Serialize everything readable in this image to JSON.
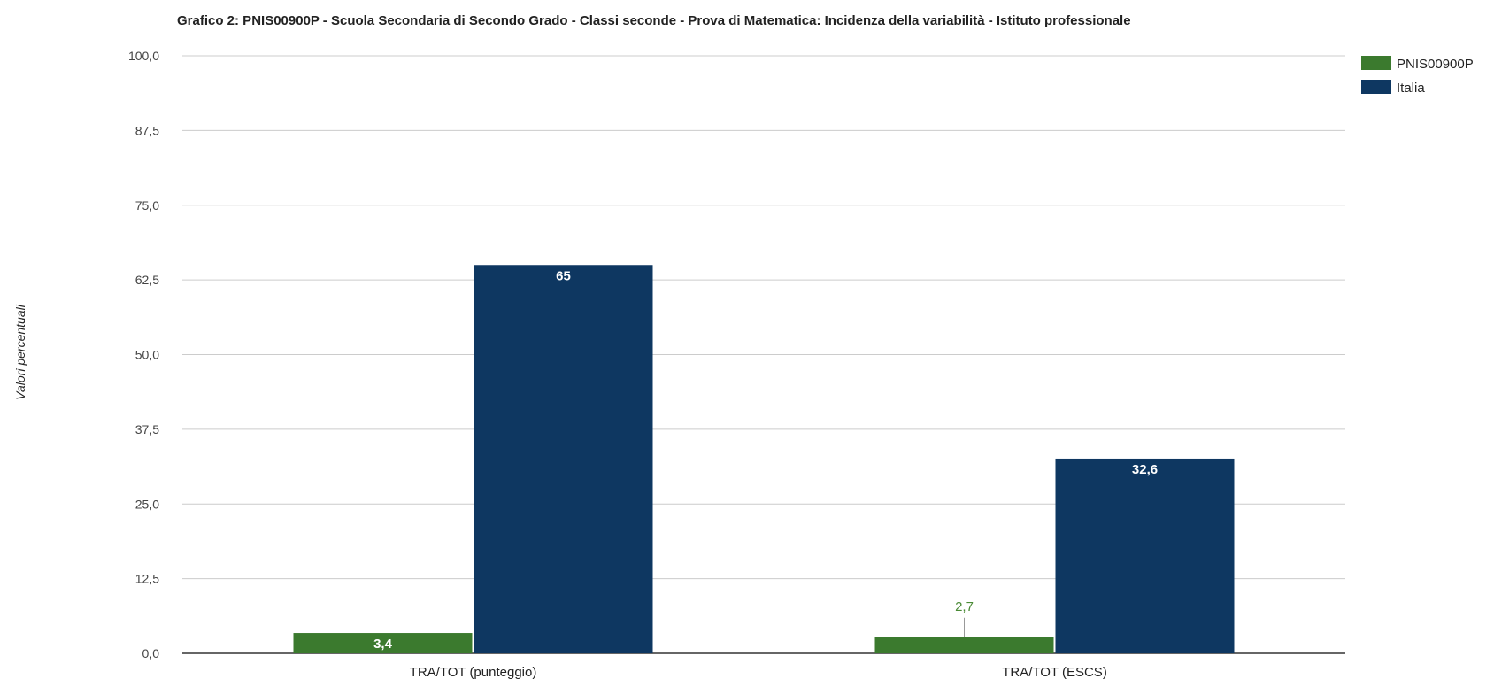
{
  "chart_data": {
    "type": "bar",
    "title": "Grafico 2: PNIS00900P - Scuola Secondaria di Secondo Grado - Classi seconde - Prova di Matematica: Incidenza della variabilità - Istituto professionale",
    "xlabel": "",
    "ylabel": "Valori percentuali",
    "categories": [
      "TRA/TOT (punteggio)",
      "TRA/TOT (ESCS)"
    ],
    "series": [
      {
        "name": "PNIS00900P",
        "color": "#3b7a2e",
        "values": [
          3.4,
          2.7
        ],
        "labels": [
          "3,4",
          "2,7"
        ]
      },
      {
        "name": "Italia",
        "color": "#0e3761",
        "values": [
          65,
          32.6
        ],
        "labels": [
          "65",
          "32,6"
        ]
      }
    ],
    "ylim": [
      0,
      100
    ],
    "yticks": [
      "0,0",
      "12,5",
      "25,0",
      "37,5",
      "50,0",
      "62,5",
      "75,0",
      "87,5",
      "100,0"
    ],
    "grid": true,
    "legend_position": "top-right"
  }
}
